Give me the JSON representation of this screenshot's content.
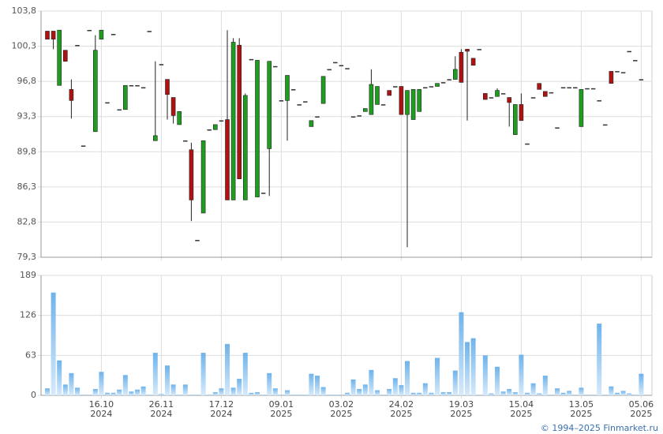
{
  "chart_data": [
    {
      "type": "candlestick",
      "up_color": "#1e9e1e",
      "down_color": "#b01212",
      "flat_color": "#333333",
      "open": [
        101.8,
        101.8,
        96.4,
        99.9,
        96.0,
        100.4,
        90.4,
        101.9,
        91.8,
        101.0,
        94.7,
        101.5,
        94.0,
        94.0,
        96.4,
        96.4,
        96.2,
        101.8,
        90.9,
        98.5,
        97.0,
        95.2,
        92.5,
        90.9,
        90.0,
        81.0,
        83.7,
        92.0,
        92.0,
        92.9,
        93.0,
        85.0,
        100.4,
        85.0,
        99.0,
        85.3,
        85.7,
        90.1,
        98.3,
        94.9,
        94.9,
        96.0,
        94.5,
        94.8,
        92.3,
        93.3,
        94.6,
        98.0,
        98.7,
        98.4,
        98.1,
        93.3,
        93.4,
        93.8,
        93.5,
        94.5,
        94.5,
        95.9,
        96.3,
        96.3,
        93.5,
        93.0,
        93.8,
        96.2,
        96.3,
        96.3,
        96.7,
        97.0,
        97.0,
        99.7,
        100.0,
        99.1,
        100.0,
        95.6,
        95.2,
        95.3,
        95.6,
        95.2,
        91.5,
        94.5,
        90.6,
        95.2,
        96.6,
        95.8,
        95.7,
        92.2,
        96.2,
        96.2,
        96.2,
        92.3,
        96.1,
        96.1,
        94.9,
        92.5,
        97.8,
        97.8,
        97.7,
        99.8,
        98.9,
        97.0
      ],
      "high": [
        101.8,
        101.8,
        101.9,
        99.9,
        97.0,
        100.4,
        90.4,
        101.9,
        101.4,
        101.9,
        94.7,
        101.5,
        94.0,
        96.4,
        96.4,
        96.4,
        96.2,
        101.8,
        98.8,
        98.5,
        97.0,
        95.2,
        93.8,
        90.9,
        90.7,
        81.0,
        90.9,
        92.0,
        92.5,
        92.9,
        101.9,
        101.1,
        101.1,
        95.6,
        99.0,
        98.9,
        85.7,
        98.8,
        98.3,
        94.9,
        97.4,
        96.0,
        94.5,
        94.8,
        92.9,
        93.3,
        97.3,
        98.0,
        98.7,
        98.4,
        98.1,
        93.3,
        93.4,
        94.1,
        98.0,
        96.3,
        94.5,
        95.9,
        96.3,
        96.3,
        95.9,
        96.0,
        96.0,
        96.2,
        96.3,
        96.6,
        96.7,
        97.0,
        99.3,
        100.0,
        100.0,
        99.1,
        100.0,
        95.6,
        95.2,
        96.1,
        95.6,
        95.2,
        94.5,
        95.6,
        90.6,
        95.2,
        96.6,
        95.8,
        95.7,
        92.2,
        96.2,
        96.2,
        96.2,
        96.0,
        96.1,
        96.1,
        94.9,
        92.5,
        97.8,
        97.8,
        97.7,
        99.8,
        98.9,
        97.0
      ],
      "low": [
        101.0,
        100.0,
        96.4,
        98.8,
        93.1,
        100.4,
        90.4,
        101.9,
        91.8,
        101.0,
        94.7,
        101.5,
        94.0,
        94.0,
        96.4,
        96.4,
        96.2,
        101.8,
        90.9,
        98.5,
        93.0,
        92.6,
        92.5,
        90.9,
        82.9,
        81.0,
        83.7,
        92.0,
        92.0,
        92.9,
        85.0,
        85.0,
        87.1,
        85.0,
        99.0,
        85.3,
        85.7,
        85.4,
        98.3,
        94.9,
        90.9,
        96.0,
        94.5,
        94.8,
        92.3,
        93.3,
        94.6,
        98.0,
        98.7,
        98.4,
        98.1,
        93.3,
        93.4,
        93.8,
        93.5,
        94.5,
        94.5,
        95.4,
        96.3,
        93.5,
        80.3,
        93.0,
        93.8,
        96.2,
        96.3,
        96.3,
        96.7,
        97.0,
        97.0,
        96.7,
        92.9,
        98.4,
        100.0,
        95.0,
        95.2,
        95.3,
        95.6,
        92.3,
        91.5,
        92.9,
        90.6,
        95.2,
        96.0,
        95.3,
        95.7,
        92.2,
        96.2,
        96.2,
        96.2,
        92.3,
        96.1,
        96.1,
        94.9,
        92.5,
        96.6,
        97.8,
        97.7,
        99.8,
        98.9,
        97.0
      ],
      "close": [
        101.0,
        101.0,
        101.9,
        98.8,
        94.9,
        100.4,
        90.4,
        101.9,
        99.9,
        101.9,
        94.7,
        101.5,
        94.0,
        96.4,
        96.4,
        96.4,
        96.2,
        101.8,
        91.4,
        98.5,
        95.5,
        93.4,
        93.8,
        90.9,
        85.0,
        81.0,
        90.9,
        92.0,
        92.5,
        92.9,
        85.0,
        100.7,
        87.1,
        95.4,
        99.0,
        98.9,
        85.7,
        98.8,
        98.3,
        94.9,
        97.4,
        96.0,
        94.5,
        94.8,
        92.9,
        93.3,
        97.3,
        98.0,
        98.7,
        98.4,
        98.1,
        93.3,
        93.4,
        94.1,
        96.5,
        96.3,
        94.5,
        95.4,
        96.3,
        93.5,
        95.9,
        96.0,
        96.0,
        96.2,
        96.3,
        96.6,
        96.7,
        97.0,
        98.0,
        96.7,
        99.8,
        98.4,
        100.0,
        95.0,
        95.2,
        95.9,
        95.6,
        94.7,
        94.5,
        92.9,
        90.6,
        95.2,
        96.0,
        95.3,
        95.7,
        92.2,
        96.2,
        96.2,
        96.2,
        96.0,
        96.1,
        96.1,
        94.9,
        92.5,
        96.6,
        97.8,
        97.7,
        99.8,
        98.9,
        97.0
      ],
      "ylim": [
        79.3,
        103.8
      ],
      "yticks": [
        {
          "value": 79.3,
          "label": "79,3"
        },
        {
          "value": 82.8,
          "label": "82,8"
        },
        {
          "value": 86.3,
          "label": "86,3"
        },
        {
          "value": 89.8,
          "label": "89,8"
        },
        {
          "value": 93.3,
          "label": "93,3"
        },
        {
          "value": 96.8,
          "label": "96,8"
        },
        {
          "value": 100.3,
          "label": "100,3"
        },
        {
          "value": 103.8,
          "label": "103,8"
        }
      ],
      "grid": true
    },
    {
      "type": "bar",
      "color": "#7dbbec",
      "categories": [
        null,
        null,
        null,
        null,
        null,
        null,
        null,
        null,
        null,
        "16.10\n2024",
        null,
        null,
        null,
        null,
        null,
        null,
        null,
        null,
        null,
        "26.11\n2024",
        null,
        null,
        null,
        null,
        null,
        null,
        null,
        null,
        null,
        "17.12\n2024",
        null,
        null,
        null,
        null,
        null,
        null,
        null,
        null,
        null,
        "09.01\n2025",
        null,
        null,
        null,
        null,
        null,
        null,
        null,
        null,
        null,
        "03.02\n2025",
        null,
        null,
        null,
        null,
        null,
        null,
        null,
        null,
        null,
        "24.02\n2025",
        null,
        null,
        null,
        null,
        null,
        null,
        null,
        null,
        null,
        "19.03\n2025",
        null,
        null,
        null,
        null,
        null,
        null,
        null,
        null,
        null,
        "15.04\n2025",
        null,
        null,
        null,
        null,
        null,
        null,
        null,
        null,
        null,
        "13.05\n2025",
        null,
        null,
        null,
        null,
        null,
        null,
        null,
        null,
        null,
        "05.06\n2025"
      ],
      "values": [
        11,
        162,
        55,
        17,
        35,
        12,
        1,
        1,
        10,
        37,
        4,
        4,
        9,
        32,
        6,
        9,
        14,
        1,
        67,
        2,
        47,
        17,
        1,
        17,
        1,
        1,
        67,
        1,
        5,
        11,
        81,
        12,
        26,
        67,
        4,
        5,
        1,
        35,
        11,
        1,
        8,
        1,
        1,
        1,
        34,
        31,
        13,
        1,
        1,
        1,
        4,
        25,
        10,
        17,
        40,
        8,
        1,
        10,
        27,
        16,
        54,
        4,
        4,
        19,
        4,
        59,
        5,
        5,
        39,
        131,
        84,
        90,
        1,
        63,
        3,
        45,
        6,
        10,
        5,
        64,
        4,
        19,
        3,
        31,
        1,
        11,
        4,
        7,
        1,
        12,
        1,
        1,
        113,
        1,
        14,
        4,
        7,
        3,
        1,
        34
      ],
      "ylim": [
        0,
        189
      ],
      "yticks": [
        0,
        63,
        126,
        189
      ],
      "grid": true
    }
  ],
  "credit": "© 1994–2025 Finmarket.ru"
}
